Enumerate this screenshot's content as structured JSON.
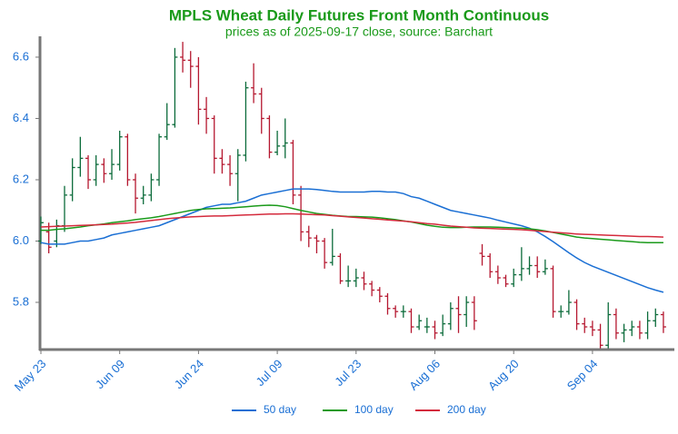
{
  "chart_data": {
    "type": "ohlc",
    "title": "MPLS Wheat Daily Futures Front Month Continuous",
    "subtitle": "prices as of 2025-09-17 close, source: Barchart",
    "categories": [
      "May 23",
      null,
      null,
      null,
      null,
      null,
      null,
      null,
      null,
      null,
      "Jun 09",
      null,
      null,
      null,
      null,
      null,
      null,
      null,
      null,
      null,
      "Jun 24",
      null,
      null,
      null,
      null,
      null,
      null,
      null,
      null,
      null,
      "Jul 09",
      null,
      null,
      null,
      null,
      null,
      null,
      null,
      null,
      null,
      "Jul 23",
      null,
      null,
      null,
      null,
      null,
      null,
      null,
      null,
      null,
      "Aug 06",
      null,
      null,
      null,
      null,
      null,
      null,
      null,
      null,
      null,
      "Aug 20",
      null,
      null,
      null,
      null,
      null,
      null,
      null,
      null,
      null,
      "Sep 04",
      null,
      null,
      null,
      null,
      null,
      null,
      null,
      null,
      null
    ],
    "open": [
      6.0,
      6.03,
      6.0,
      6.05,
      6.15,
      6.24,
      6.27,
      6.2,
      6.25,
      6.22,
      6.25,
      6.34,
      6.2,
      6.14,
      6.15,
      6.2,
      6.34,
      6.38,
      6.6,
      6.59,
      6.57,
      6.43,
      6.4,
      6.27,
      6.25,
      6.22,
      6.28,
      6.5,
      6.48,
      6.4,
      6.29,
      6.31,
      6.32,
      6.15,
      6.03,
      6.01,
      6.0,
      5.93,
      5.95,
      5.87,
      5.87,
      5.88,
      5.86,
      5.84,
      5.82,
      5.78,
      5.77,
      5.77,
      5.72,
      5.72,
      5.72,
      5.7,
      5.73,
      5.78,
      5.76,
      5.8,
      5.96,
      5.95,
      5.9,
      5.88,
      5.86,
      5.89,
      5.91,
      5.92,
      5.9,
      5.91,
      5.77,
      5.77,
      5.8,
      5.73,
      5.72,
      5.71,
      5.66,
      5.76,
      5.7,
      5.71,
      5.72,
      5.7,
      5.74,
      5.76
    ],
    "high": [
      6.08,
      6.06,
      6.07,
      6.18,
      6.27,
      6.34,
      6.28,
      6.28,
      6.27,
      6.3,
      6.36,
      6.35,
      6.22,
      6.18,
      6.22,
      6.35,
      6.45,
      6.63,
      6.65,
      6.62,
      6.6,
      6.47,
      6.41,
      6.3,
      6.28,
      6.3,
      6.52,
      6.58,
      6.5,
      6.41,
      6.36,
      6.4,
      6.33,
      6.18,
      6.05,
      6.02,
      6.01,
      6.04,
      5.96,
      5.92,
      5.91,
      5.9,
      5.87,
      5.85,
      5.83,
      5.79,
      5.79,
      5.78,
      5.76,
      5.75,
      5.74,
      5.76,
      5.8,
      5.82,
      5.82,
      5.82,
      5.99,
      5.96,
      5.92,
      5.89,
      5.91,
      5.98,
      5.95,
      5.95,
      5.94,
      5.92,
      5.79,
      5.84,
      5.81,
      5.75,
      5.74,
      5.73,
      5.8,
      5.78,
      5.73,
      5.74,
      5.74,
      5.77,
      5.78,
      5.77
    ],
    "low": [
      5.99,
      5.96,
      5.98,
      6.03,
      6.13,
      6.21,
      6.17,
      6.18,
      6.19,
      6.2,
      6.23,
      6.18,
      6.09,
      6.12,
      6.13,
      6.18,
      6.33,
      6.37,
      6.55,
      6.5,
      6.38,
      6.35,
      6.22,
      6.22,
      6.18,
      6.13,
      6.26,
      6.45,
      6.35,
      6.27,
      6.28,
      6.27,
      6.12,
      6.0,
      5.98,
      5.96,
      5.91,
      5.92,
      5.86,
      5.85,
      5.85,
      5.84,
      5.82,
      5.8,
      5.76,
      5.75,
      5.75,
      5.7,
      5.71,
      5.7,
      5.68,
      5.69,
      5.71,
      5.7,
      5.72,
      5.71,
      5.92,
      5.88,
      5.86,
      5.85,
      5.85,
      5.87,
      5.89,
      5.88,
      5.89,
      5.75,
      5.75,
      5.76,
      5.71,
      5.7,
      5.69,
      5.65,
      5.65,
      5.68,
      5.67,
      5.69,
      5.68,
      5.68,
      5.72,
      5.7
    ],
    "close": [
      6.06,
      5.98,
      6.05,
      6.15,
      6.24,
      6.27,
      6.2,
      6.25,
      6.22,
      6.25,
      6.34,
      6.2,
      6.14,
      6.15,
      6.2,
      6.34,
      6.38,
      6.6,
      6.59,
      6.57,
      6.43,
      6.4,
      6.27,
      6.25,
      6.22,
      6.28,
      6.5,
      6.48,
      6.4,
      6.29,
      6.31,
      6.32,
      6.15,
      6.03,
      6.01,
      6.0,
      5.93,
      5.95,
      5.87,
      5.87,
      5.88,
      5.86,
      5.84,
      5.82,
      5.78,
      5.77,
      5.77,
      5.72,
      5.74,
      5.72,
      5.7,
      5.73,
      5.78,
      5.76,
      5.8,
      5.74,
      5.95,
      5.9,
      5.88,
      5.86,
      5.89,
      5.91,
      5.92,
      5.9,
      5.91,
      5.77,
      5.77,
      5.8,
      5.73,
      5.72,
      5.71,
      5.66,
      5.76,
      5.7,
      5.71,
      5.72,
      5.7,
      5.74,
      5.76,
      5.72
    ],
    "up_color": "#0b6b3a",
    "down_color": "#b5172f",
    "series": [
      {
        "name": "50 day",
        "color": "#1a6fd4",
        "values": [
          5.995,
          5.99,
          5.99,
          5.99,
          5.995,
          6.0,
          6.0,
          6.005,
          6.01,
          6.02,
          6.025,
          6.03,
          6.035,
          6.04,
          6.045,
          6.05,
          6.06,
          6.07,
          6.08,
          6.09,
          6.1,
          6.11,
          6.115,
          6.12,
          6.12,
          6.125,
          6.13,
          6.14,
          6.15,
          6.155,
          6.16,
          6.165,
          6.17,
          6.17,
          6.17,
          6.168,
          6.165,
          6.162,
          6.16,
          6.16,
          6.16,
          6.16,
          6.162,
          6.162,
          6.16,
          6.16,
          6.155,
          6.145,
          6.14,
          6.13,
          6.12,
          6.11,
          6.1,
          6.095,
          6.09,
          6.085,
          6.08,
          6.075,
          6.068,
          6.062,
          6.056,
          6.05,
          6.042,
          6.03,
          6.015,
          5.998,
          5.98,
          5.962,
          5.945,
          5.93,
          5.918,
          5.908,
          5.898,
          5.888,
          5.878,
          5.868,
          5.858,
          5.848,
          5.84,
          5.833
        ]
      },
      {
        "name": "100 day",
        "color": "#1a9a1a",
        "values": [
          6.035,
          6.035,
          6.038,
          6.04,
          6.043,
          6.046,
          6.05,
          6.053,
          6.056,
          6.06,
          6.063,
          6.066,
          6.07,
          6.073,
          6.076,
          6.08,
          6.085,
          6.09,
          6.095,
          6.1,
          6.103,
          6.105,
          6.106,
          6.107,
          6.108,
          6.11,
          6.112,
          6.114,
          6.116,
          6.117,
          6.116,
          6.112,
          6.106,
          6.1,
          6.095,
          6.09,
          6.087,
          6.084,
          6.082,
          6.08,
          6.08,
          6.079,
          6.078,
          6.076,
          6.073,
          6.07,
          6.066,
          6.062,
          6.057,
          6.052,
          6.048,
          6.045,
          6.044,
          6.044,
          6.045,
          6.046,
          6.046,
          6.046,
          6.045,
          6.044,
          6.043,
          6.042,
          6.04,
          6.037,
          6.033,
          6.028,
          6.023,
          6.018,
          6.013,
          6.01,
          6.008,
          6.006,
          6.004,
          6.002,
          6.0,
          5.998,
          5.996,
          5.995,
          5.995,
          5.995
        ]
      },
      {
        "name": "200 day",
        "color": "#d42a3c",
        "values": [
          6.046,
          6.047,
          6.048,
          6.049,
          6.05,
          6.051,
          6.052,
          6.053,
          6.054,
          6.055,
          6.057,
          6.059,
          6.061,
          6.064,
          6.067,
          6.07,
          6.073,
          6.075,
          6.077,
          6.079,
          6.08,
          6.081,
          6.082,
          6.082,
          6.083,
          6.084,
          6.085,
          6.086,
          6.087,
          6.088,
          6.088,
          6.089,
          6.089,
          6.088,
          6.087,
          6.086,
          6.085,
          6.083,
          6.081,
          6.079,
          6.077,
          6.075,
          6.073,
          6.071,
          6.069,
          6.067,
          6.065,
          6.063,
          6.06,
          6.057,
          6.055,
          6.052,
          6.049,
          6.047,
          6.045,
          6.043,
          6.042,
          6.041,
          6.04,
          6.039,
          6.038,
          6.037,
          6.035,
          6.033,
          6.031,
          6.029,
          6.027,
          6.025,
          6.023,
          6.022,
          6.021,
          6.02,
          6.019,
          6.018,
          6.017,
          6.016,
          6.015,
          6.015,
          6.014,
          6.013
        ]
      }
    ],
    "ylim": [
      5.646,
      6.668
    ],
    "yticks": [
      5.8,
      {
        "value": 6,
        "label": "6.0"
      },
      6.2,
      6.4,
      6.6
    ],
    "grid": false,
    "legend": "bottom"
  }
}
